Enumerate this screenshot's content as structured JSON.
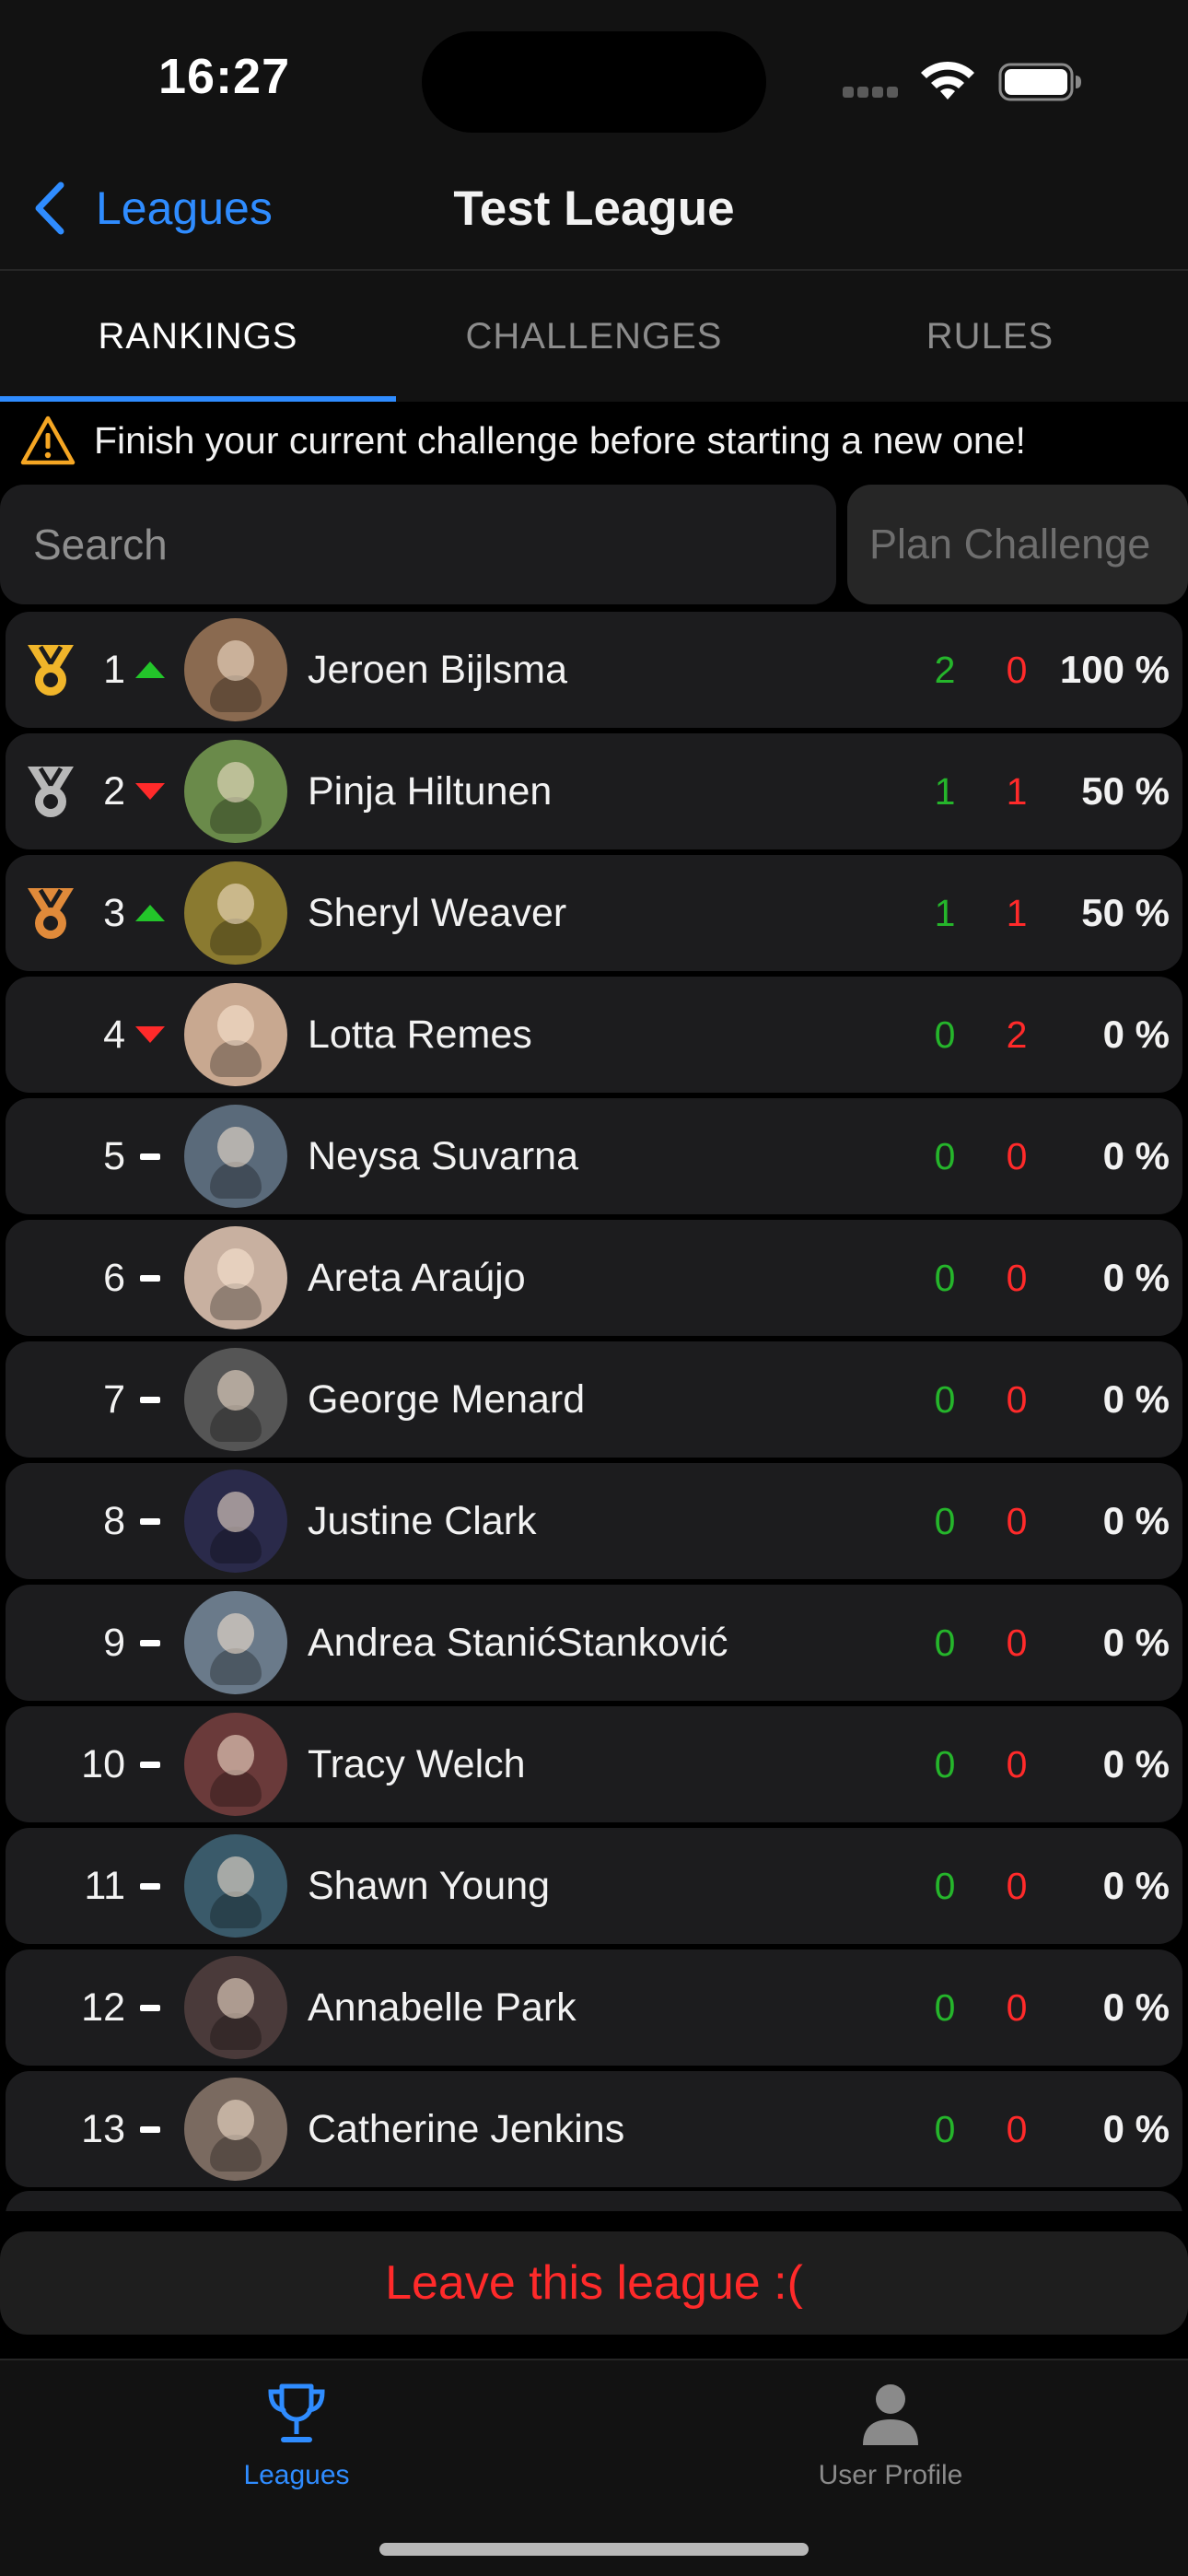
{
  "status_bar": {
    "time": "16:27"
  },
  "nav": {
    "back_label": "Leagues",
    "title": "Test League"
  },
  "tabs": [
    {
      "label": "RANKINGS",
      "active": true
    },
    {
      "label": "CHALLENGES",
      "active": false
    },
    {
      "label": "RULES",
      "active": false
    }
  ],
  "warning": {
    "text": "Finish your current challenge before starting a new one!"
  },
  "search": {
    "placeholder": "Search"
  },
  "plan_button": {
    "label": "Plan Challenge"
  },
  "rankings": [
    {
      "rank": "1",
      "medal": "gold",
      "trend": "up",
      "name": "Jeroen Bijlsma",
      "wins": "2",
      "losses": "0",
      "pct": "100 %",
      "avatar_color": "#8a6a50"
    },
    {
      "rank": "2",
      "medal": "silver",
      "trend": "down",
      "name": "Pinja Hiltunen",
      "wins": "1",
      "losses": "1",
      "pct": "50 %",
      "avatar_color": "#6a8a4a"
    },
    {
      "rank": "3",
      "medal": "bronze",
      "trend": "up",
      "name": "Sheryl Weaver",
      "wins": "1",
      "losses": "1",
      "pct": "50 %",
      "avatar_color": "#8a7a30"
    },
    {
      "rank": "4",
      "medal": "none",
      "trend": "down",
      "name": "Lotta Remes",
      "wins": "0",
      "losses": "2",
      "pct": "0 %",
      "avatar_color": "#c8a890"
    },
    {
      "rank": "5",
      "medal": "none",
      "trend": "same",
      "name": "Neysa Suvarna",
      "wins": "0",
      "losses": "0",
      "pct": "0 %",
      "avatar_color": "#5a6a7a"
    },
    {
      "rank": "6",
      "medal": "none",
      "trend": "same",
      "name": "Areta Araújo",
      "wins": "0",
      "losses": "0",
      "pct": "0 %",
      "avatar_color": "#c8b0a0"
    },
    {
      "rank": "7",
      "medal": "none",
      "trend": "same",
      "name": "George Menard",
      "wins": "0",
      "losses": "0",
      "pct": "0 %",
      "avatar_color": "#555555"
    },
    {
      "rank": "8",
      "medal": "none",
      "trend": "same",
      "name": "Justine Clark",
      "wins": "0",
      "losses": "0",
      "pct": "0 %",
      "avatar_color": "#2a2a4a"
    },
    {
      "rank": "9",
      "medal": "none",
      "trend": "same",
      "name": "Andrea StanićStanković",
      "wins": "0",
      "losses": "0",
      "pct": "0 %",
      "avatar_color": "#6a7a8a"
    },
    {
      "rank": "10",
      "medal": "none",
      "trend": "same",
      "name": "Tracy Welch",
      "wins": "0",
      "losses": "0",
      "pct": "0 %",
      "avatar_color": "#6a3a3a"
    },
    {
      "rank": "11",
      "medal": "none",
      "trend": "same",
      "name": "Shawn Young",
      "wins": "0",
      "losses": "0",
      "pct": "0 %",
      "avatar_color": "#3a5a6a"
    },
    {
      "rank": "12",
      "medal": "none",
      "trend": "same",
      "name": "Annabelle Park",
      "wins": "0",
      "losses": "0",
      "pct": "0 %",
      "avatar_color": "#4a3a3a"
    },
    {
      "rank": "13",
      "medal": "none",
      "trend": "same",
      "name": "Catherine Jenkins",
      "wins": "0",
      "losses": "0",
      "pct": "0 %",
      "avatar_color": "#7a6a60"
    }
  ],
  "leave_button": {
    "label": "Leave this league :("
  },
  "tab_bar": [
    {
      "label": "Leagues",
      "icon": "trophy-icon",
      "active": true
    },
    {
      "label": "User Profile",
      "icon": "person-icon",
      "active": false
    }
  ],
  "colors": {
    "accent": "#2f8cff",
    "win": "#25b52b",
    "loss": "#ff2a2a",
    "gold": "#f0b52a",
    "silver": "#b8b8b8",
    "bronze": "#e08a3a",
    "warning": "#f5a623"
  }
}
